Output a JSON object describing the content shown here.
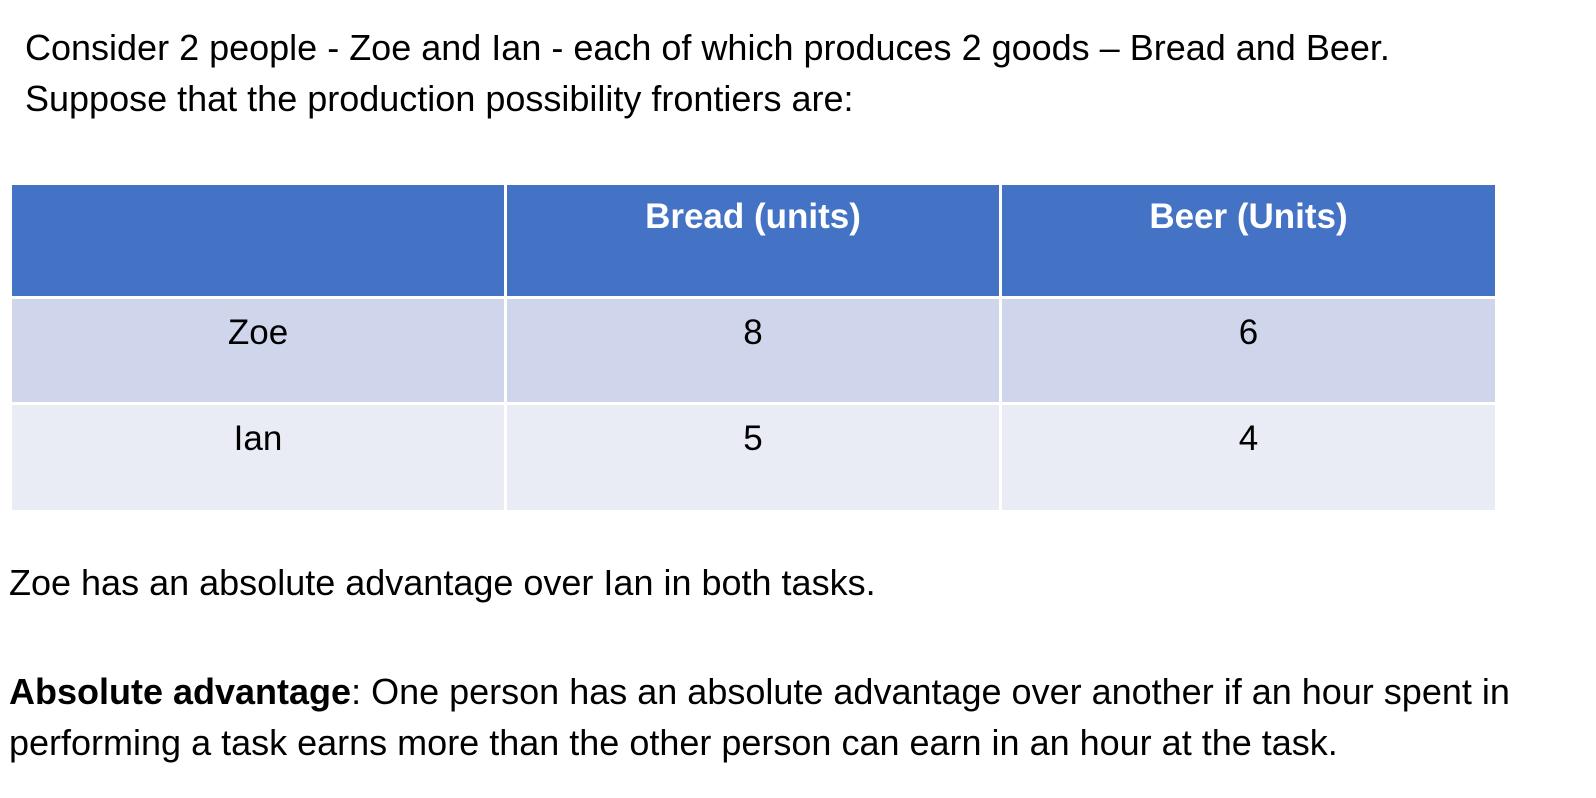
{
  "intro": {
    "line1": "Consider 2 people - Zoe and Ian - each of which produces 2 goods – Bread and Beer.",
    "line2": "Suppose that the production possibility frontiers are:"
  },
  "table": {
    "headers": [
      "",
      "Bread (units)",
      "Beer (Units)"
    ],
    "rows": [
      {
        "person": "Zoe",
        "bread": "8",
        "beer": "6"
      },
      {
        "person": "Ian",
        "bread": "5",
        "beer": "4"
      }
    ]
  },
  "statement": "Zoe has an absolute advantage over Ian in both tasks.",
  "definition": {
    "term": "Absolute advantage",
    "line1_rest": ": One person has an absolute advantage over another if an hour spent in",
    "line2": "performing a task earns more than the other person can earn in an hour at the task."
  }
}
